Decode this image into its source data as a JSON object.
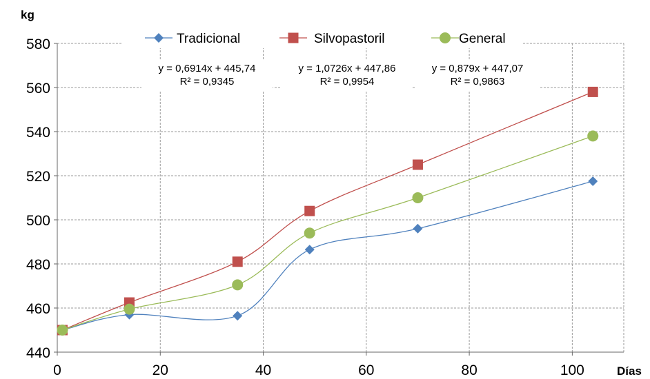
{
  "chart_data": {
    "type": "line",
    "title": "",
    "ylabel": "kg",
    "xlabel": "Días",
    "xlim": [
      0,
      110
    ],
    "ylim": [
      440,
      580
    ],
    "xticks": [
      0,
      20,
      40,
      60,
      80,
      100
    ],
    "yticks": [
      440,
      460,
      480,
      500,
      520,
      540,
      560,
      580
    ],
    "grid": "dashed",
    "legend_position": "top",
    "x": [
      1,
      14,
      35,
      49,
      70,
      104
    ],
    "series": [
      {
        "name": "Tradicional",
        "values": [
          450,
          457,
          456.5,
          486.5,
          496,
          517.5
        ],
        "color": "#4F81BD",
        "marker": "diamond",
        "equation": "y = 0,6914x + 445,74",
        "r2": "R² = 0,9345"
      },
      {
        "name": "Silvopastoril",
        "values": [
          450,
          462.5,
          481,
          504,
          525,
          558
        ],
        "color": "#C0504D",
        "marker": "square",
        "equation": "y = 1,0726x + 447,86",
        "r2": "R² = 0,9954"
      },
      {
        "name": "General",
        "values": [
          450,
          459.5,
          470.5,
          494,
          510,
          538
        ],
        "color": "#9BBB59",
        "marker": "circle",
        "equation": "y = 0,879x + 447,07",
        "r2": "R² = 0,9863"
      }
    ]
  }
}
